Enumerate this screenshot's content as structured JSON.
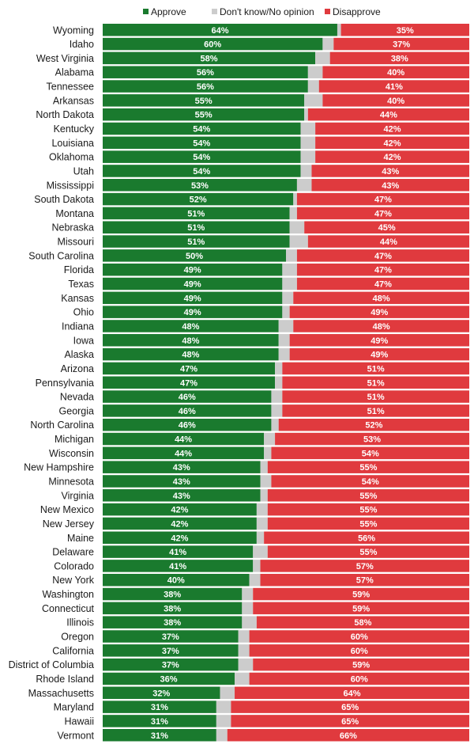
{
  "chart_data": {
    "type": "bar",
    "orientation": "horizontal",
    "stacked": true,
    "normalized": true,
    "legend_position": "top",
    "series": [
      {
        "name": "Approve",
        "color": "#1a7a2e"
      },
      {
        "name": "Don't know/No opinion",
        "color": "#cccccc"
      },
      {
        "name": "Disapprove",
        "color": "#e03a3e"
      }
    ],
    "rows": [
      {
        "state": "Wyoming",
        "approve": 64,
        "disapprove": 35
      },
      {
        "state": "Idaho",
        "approve": 60,
        "disapprove": 37
      },
      {
        "state": "West Virginia",
        "approve": 58,
        "disapprove": 38
      },
      {
        "state": "Alabama",
        "approve": 56,
        "disapprove": 40
      },
      {
        "state": "Tennessee",
        "approve": 56,
        "disapprove": 41
      },
      {
        "state": "Arkansas",
        "approve": 55,
        "disapprove": 40
      },
      {
        "state": "North Dakota",
        "approve": 55,
        "disapprove": 44
      },
      {
        "state": "Kentucky",
        "approve": 54,
        "disapprove": 42
      },
      {
        "state": "Louisiana",
        "approve": 54,
        "disapprove": 42
      },
      {
        "state": "Oklahoma",
        "approve": 54,
        "disapprove": 42
      },
      {
        "state": "Utah",
        "approve": 54,
        "disapprove": 43
      },
      {
        "state": "Mississippi",
        "approve": 53,
        "disapprove": 43
      },
      {
        "state": "South Dakota",
        "approve": 52,
        "disapprove": 47
      },
      {
        "state": "Montana",
        "approve": 51,
        "disapprove": 47
      },
      {
        "state": "Nebraska",
        "approve": 51,
        "disapprove": 45
      },
      {
        "state": "Missouri",
        "approve": 51,
        "disapprove": 44
      },
      {
        "state": "South Carolina",
        "approve": 50,
        "disapprove": 47
      },
      {
        "state": "Florida",
        "approve": 49,
        "disapprove": 47
      },
      {
        "state": "Texas",
        "approve": 49,
        "disapprove": 47
      },
      {
        "state": "Kansas",
        "approve": 49,
        "disapprove": 48
      },
      {
        "state": "Ohio",
        "approve": 49,
        "disapprove": 49
      },
      {
        "state": "Indiana",
        "approve": 48,
        "disapprove": 48
      },
      {
        "state": "Iowa",
        "approve": 48,
        "disapprove": 49
      },
      {
        "state": "Alaska",
        "approve": 48,
        "disapprove": 49
      },
      {
        "state": "Arizona",
        "approve": 47,
        "disapprove": 51
      },
      {
        "state": "Pennsylvania",
        "approve": 47,
        "disapprove": 51
      },
      {
        "state": "Nevada",
        "approve": 46,
        "disapprove": 51
      },
      {
        "state": "Georgia",
        "approve": 46,
        "disapprove": 51
      },
      {
        "state": "North Carolina",
        "approve": 46,
        "disapprove": 52
      },
      {
        "state": "Michigan",
        "approve": 44,
        "disapprove": 53
      },
      {
        "state": "Wisconsin",
        "approve": 44,
        "disapprove": 54
      },
      {
        "state": "New Hampshire",
        "approve": 43,
        "disapprove": 55
      },
      {
        "state": "Minnesota",
        "approve": 43,
        "disapprove": 54
      },
      {
        "state": "Virginia",
        "approve": 43,
        "disapprove": 55
      },
      {
        "state": "New Mexico",
        "approve": 42,
        "disapprove": 55
      },
      {
        "state": "New Jersey",
        "approve": 42,
        "disapprove": 55
      },
      {
        "state": "Maine",
        "approve": 42,
        "disapprove": 56
      },
      {
        "state": "Delaware",
        "approve": 41,
        "disapprove": 55
      },
      {
        "state": "Colorado",
        "approve": 41,
        "disapprove": 57
      },
      {
        "state": "New York",
        "approve": 40,
        "disapprove": 57
      },
      {
        "state": "Washington",
        "approve": 38,
        "disapprove": 59
      },
      {
        "state": "Connecticut",
        "approve": 38,
        "disapprove": 59
      },
      {
        "state": "Illinois",
        "approve": 38,
        "disapprove": 58
      },
      {
        "state": "Oregon",
        "approve": 37,
        "disapprove": 60
      },
      {
        "state": "California",
        "approve": 37,
        "disapprove": 60
      },
      {
        "state": "District of Columbia",
        "approve": 37,
        "disapprove": 59
      },
      {
        "state": "Rhode Island",
        "approve": 36,
        "disapprove": 60
      },
      {
        "state": "Massachusetts",
        "approve": 32,
        "disapprove": 64
      },
      {
        "state": "Maryland",
        "approve": 31,
        "disapprove": 65
      },
      {
        "state": "Hawaii",
        "approve": 31,
        "disapprove": 65
      },
      {
        "state": "Vermont",
        "approve": 31,
        "disapprove": 66
      }
    ]
  }
}
